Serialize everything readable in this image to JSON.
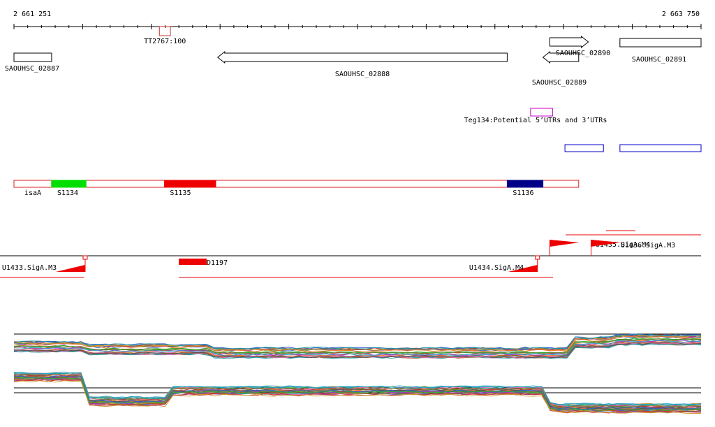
{
  "ruler": {
    "start_label": "2 661 251",
    "end_label": "2 663 750",
    "start": 2661251,
    "end": 2663750
  },
  "genes": [
    {
      "name": "SAOUHSC_02887",
      "start": 2661251,
      "end": 2661388,
      "strand": "none"
    },
    {
      "name": "SAOUHSC_02888",
      "start": 2661992,
      "end": 2663045,
      "strand": "-"
    },
    {
      "name": "SAOUHSC_02889",
      "start": 2663175,
      "end": 2663305,
      "strand": "-"
    },
    {
      "name": "SAOUHSC_02890",
      "start": 2663200,
      "end": 2663340,
      "strand": "+"
    },
    {
      "name": "SAOUHSC_02891",
      "start": 2663455,
      "end": 2663750,
      "strand": "none"
    }
  ],
  "tss": [
    {
      "name": "TT2767:100",
      "start": 2661780,
      "end": 2661820
    }
  ],
  "utr": [
    {
      "name": "Teg134:Potential 5’UTRs and 3’UTRs",
      "start": 2663130,
      "end": 2663210
    }
  ],
  "blue_features": [
    {
      "start": 2663255,
      "end": 2663395
    },
    {
      "start": 2663455,
      "end": 2663750
    }
  ],
  "segments": {
    "outline": [
      {
        "start": 2661251,
        "end": 2661388,
        "label": "isaA"
      },
      {
        "start": 2661388,
        "end": 2663305,
        "label": ""
      }
    ],
    "filled": [
      {
        "name": "S1134",
        "start": 2661388,
        "end": 2661513,
        "color": "#00dd00"
      },
      {
        "name": "S1135",
        "start": 2661798,
        "end": 2661985,
        "color": "#ee0000"
      },
      {
        "name": "S1136",
        "start": 2663045,
        "end": 2663175,
        "color": "#000088"
      }
    ]
  },
  "promoters": [
    {
      "name": "U1433.SigA.M3",
      "pos": 2661510,
      "strand": "-"
    },
    {
      "name": "D1197",
      "pos": 2661845,
      "strand": "-"
    },
    {
      "name": "U1434.SigA.M4",
      "pos": 2663155,
      "strand": "-"
    },
    {
      "name": "U1435.SigA.M4",
      "pos": 2663200,
      "strand": "+"
    },
    {
      "name": "U1436.SigA.M3",
      "pos": 2663350,
      "strand": "+"
    }
  ],
  "colors": {
    "gene": "#000000",
    "tss": "#cc3333",
    "utr": "#cc00cc",
    "blue": "#0000cc",
    "segment_outline": "#dd2222",
    "promoter": "#ee0000"
  }
}
